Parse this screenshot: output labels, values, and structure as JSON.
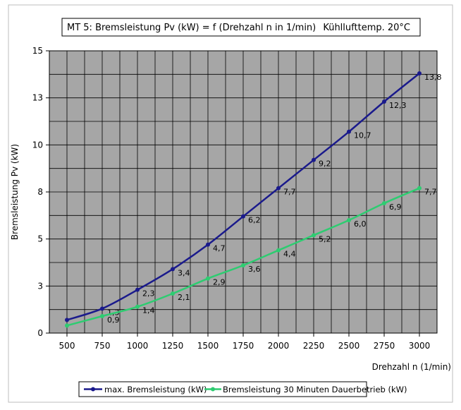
{
  "chart_data": {
    "type": "line",
    "title_left": "MT 5:   Bremsleistung Pv (kW) = f (Drehzahl n in 1/min)",
    "title_right": "Kühllufttemp.  20°C",
    "xlabel": "Drehzahl n (1/min)",
    "ylabel": "Bremsleistung Pv (kW)",
    "x": [
      500,
      750,
      1000,
      1250,
      1500,
      1750,
      2000,
      2250,
      2500,
      2750,
      3000
    ],
    "xlim": [
      375,
      3125
    ],
    "ylim": [
      0,
      15
    ],
    "yticks": [
      0,
      2.5,
      5,
      7.5,
      10,
      12.5,
      15
    ],
    "ytick_labels": [
      "0",
      "3",
      "5",
      "8",
      "10",
      "13",
      "15"
    ],
    "xgrid_step": 125,
    "grid": true,
    "legend_position": "bottom",
    "series": [
      {
        "name": "max. Bremsleistung (kW)",
        "color": "#1a1a8c",
        "values": [
          0.7,
          1.3,
          2.3,
          3.4,
          4.7,
          6.2,
          7.7,
          9.2,
          10.7,
          12.3,
          13.8
        ],
        "labels": [
          "",
          "1,3",
          "2,3",
          "3,4",
          "4,7",
          "6,2",
          "7,7",
          "9,2",
          "10,7",
          "12,3",
          "13,8"
        ]
      },
      {
        "name": "Bremsleistung 30 Minuten Dauerbetrieb (kW)",
        "color": "#2ecc71",
        "values": [
          0.4,
          0.9,
          1.4,
          2.1,
          2.9,
          3.6,
          4.4,
          5.2,
          6.0,
          6.9,
          7.7
        ],
        "labels": [
          "",
          "0,9",
          "1,4",
          "2,1",
          "2,9",
          "3,6",
          "4,4",
          "5,2",
          "6,0",
          "6,9",
          "7,7"
        ]
      }
    ]
  }
}
